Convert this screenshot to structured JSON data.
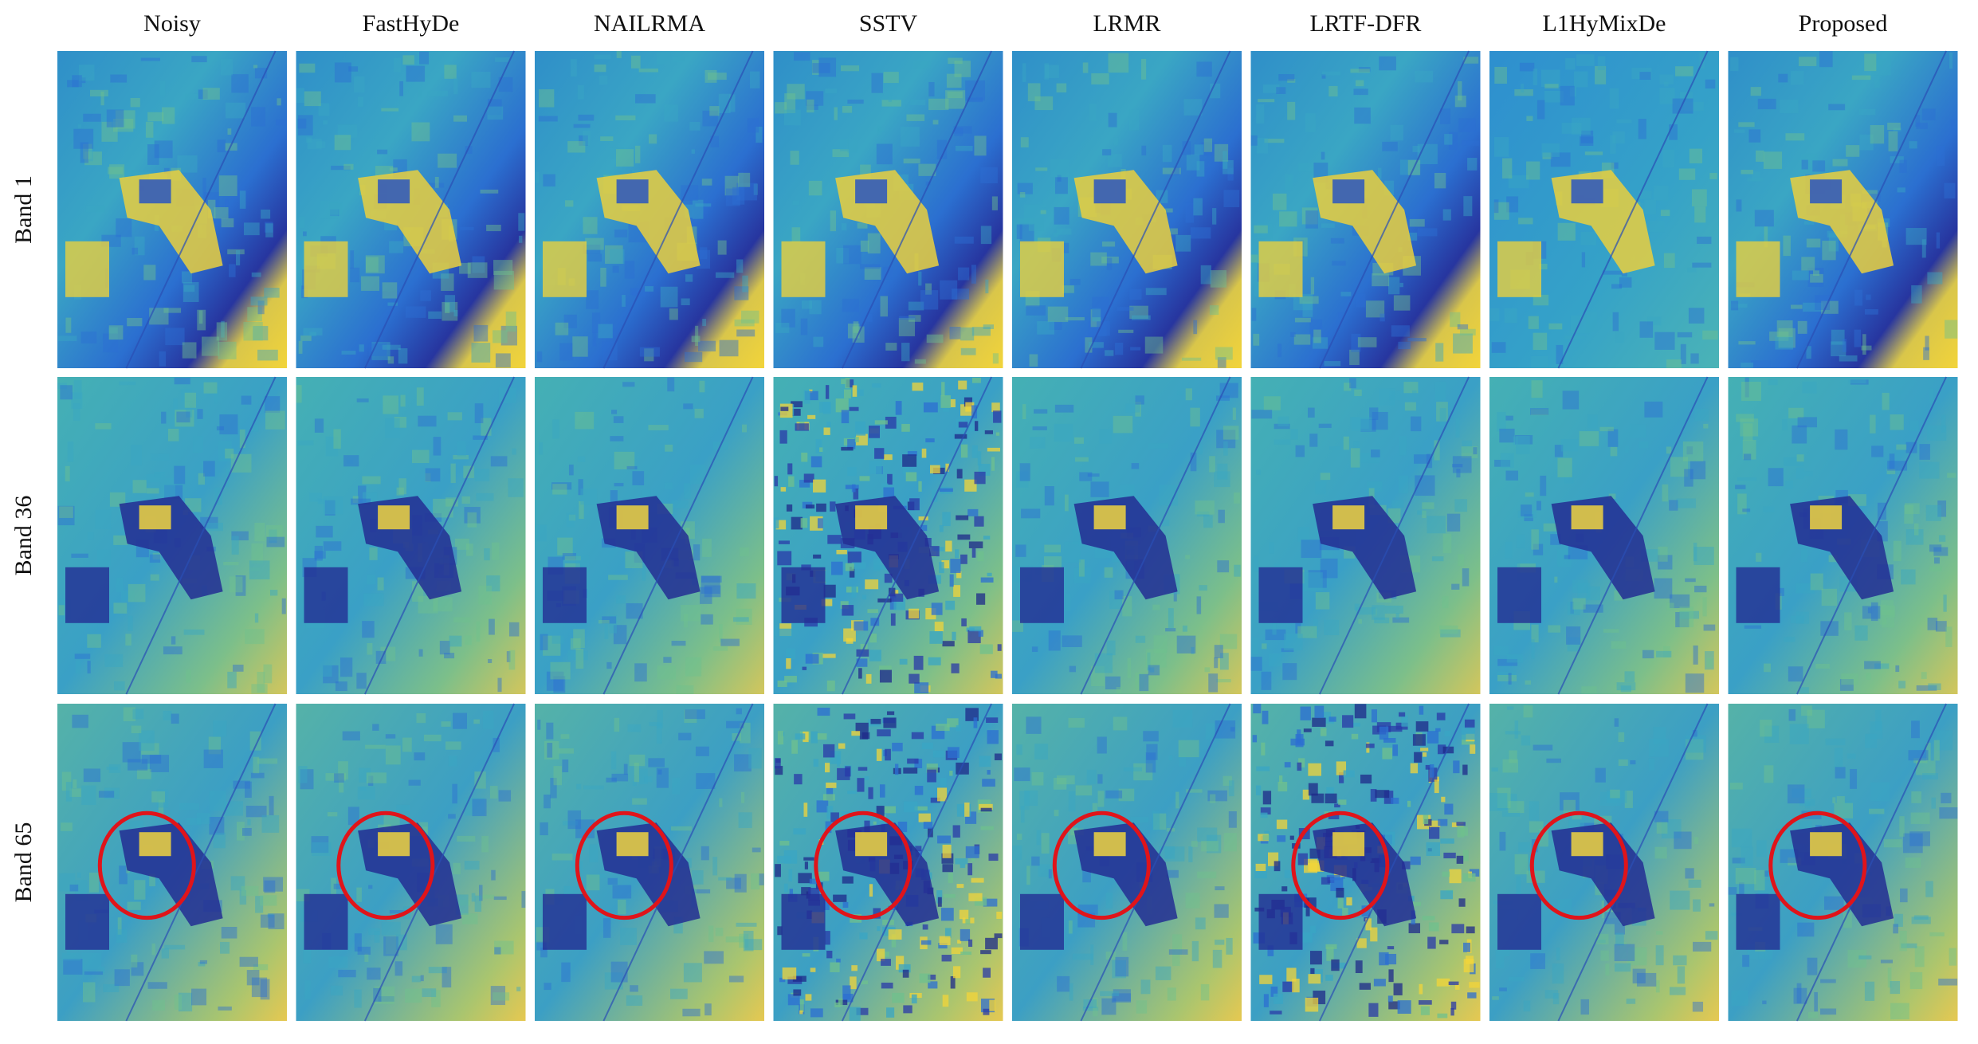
{
  "figure": {
    "columns": [
      "Noisy",
      "FastHyDe",
      "NAILRMA",
      "SSTV",
      "LRMR",
      "LRTF-DFR",
      "L1HyMixDe",
      "Proposed"
    ],
    "rows": [
      "Band 1",
      "Band 36",
      "Band 65"
    ]
  }
}
